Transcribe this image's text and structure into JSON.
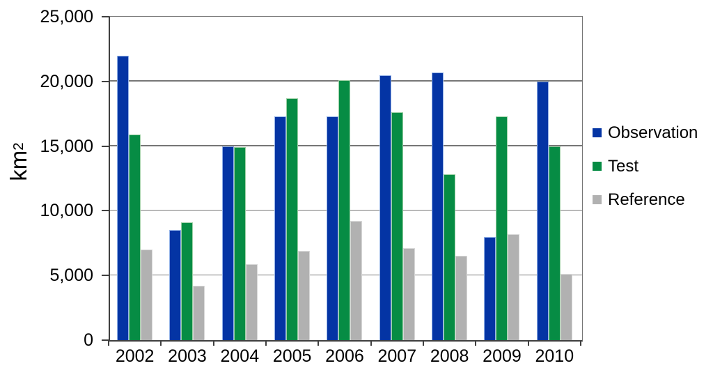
{
  "chart_data": {
    "type": "bar",
    "title": "",
    "xlabel": "",
    "ylabel": "km²",
    "ylabel_base": "km",
    "ylabel_sup": "2",
    "categories": [
      "2002",
      "2003",
      "2004",
      "2005",
      "2006",
      "2007",
      "2008",
      "2009",
      "2010"
    ],
    "series": [
      {
        "name": "Observation",
        "color": "#0434a4",
        "edge_color": "#93b2e8",
        "values": [
          22000,
          8500,
          15000,
          17300,
          17300,
          20500,
          20700,
          8000,
          20000
        ]
      },
      {
        "name": "Test",
        "color": "#068c44",
        "edge_color": "#9bd0a4",
        "values": [
          15900,
          9100,
          14900,
          18700,
          20100,
          17600,
          12800,
          17300,
          15000
        ]
      },
      {
        "name": "Reference",
        "color": "#b1b1b1",
        "edge_color": "#d8d8d8",
        "values": [
          7000,
          4200,
          5900,
          6900,
          9200,
          7100,
          6500,
          8200,
          5100
        ]
      }
    ],
    "ylim": [
      0,
      25000
    ],
    "y_tick_step": 5000,
    "y_tick_labels": [
      "0",
      "5,000",
      "10,000",
      "15,000",
      "20,000",
      "25,000"
    ],
    "grid": "horizontal",
    "legend_position": "right"
  },
  "colors": {
    "gridline": "#767676",
    "axis": "#3f3f3f",
    "text": "#000000"
  }
}
